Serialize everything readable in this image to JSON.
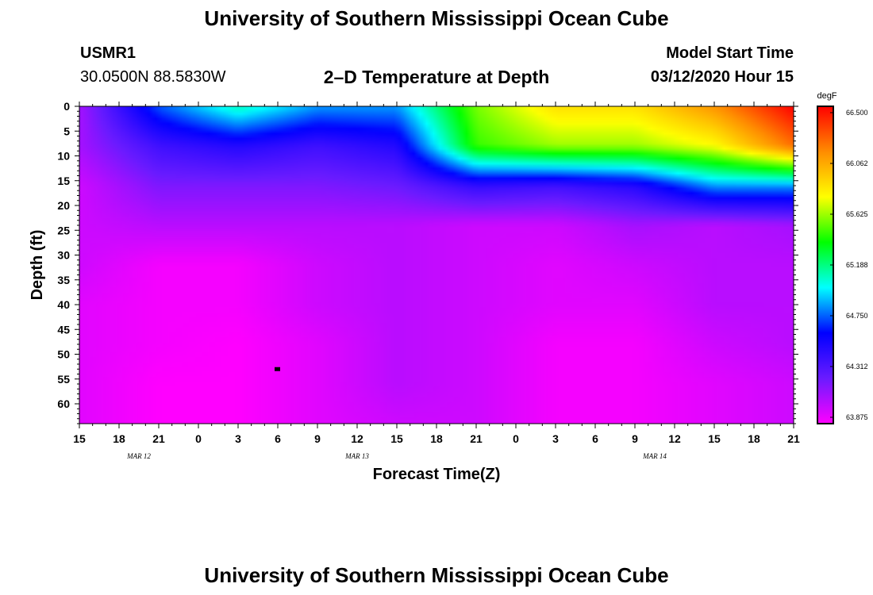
{
  "header": {
    "title_top": "University of Southern Mississippi Ocean Cube",
    "station": "USMR1",
    "coords": "30.0500N 88.5830W",
    "model_start_label": "Model Start Time",
    "model_start_value": "03/12/2020 Hour 15",
    "footer_title": "University of Southern Mississippi Ocean Cube"
  },
  "colors": {
    "scale": [
      "#ff00ff",
      "#6a1bff",
      "#0000ff",
      "#00ffff",
      "#00ff00",
      "#ffff00",
      "#ff8c00",
      "#ff0000"
    ]
  },
  "chart_data": {
    "type": "heatmap",
    "title": "2–D Temperature at Depth",
    "xlabel": "Forecast Time(Z)",
    "ylabel": "Depth (ft)",
    "x_tick_labels": [
      "15",
      "18",
      "21",
      "0",
      "3",
      "6",
      "9",
      "12",
      "15",
      "18",
      "21",
      "0",
      "3",
      "6",
      "9",
      "12",
      "15",
      "18",
      "21"
    ],
    "x_range_hours": [
      0,
      54
    ],
    "date_labels": [
      {
        "label": "MAR 12",
        "hour": 4.5
      },
      {
        "label": "MAR 13",
        "hour": 21
      },
      {
        "label": "MAR 14",
        "hour": 43.5
      }
    ],
    "y_tick_labels": [
      "0",
      "5",
      "10",
      "15",
      "20",
      "25",
      "30",
      "35",
      "40",
      "45",
      "50",
      "55",
      "60"
    ],
    "y_range_ft": [
      0,
      64
    ],
    "colorbar": {
      "unit": "degF",
      "min": 63.875,
      "max": 66.5,
      "tick_labels": [
        "66.500",
        "66.062",
        "65.625",
        "65.188",
        "64.750",
        "64.312",
        "63.875"
      ]
    },
    "marker": {
      "hour": 15,
      "depth_ft": 53
    },
    "grid_hours": [
      0,
      6,
      12,
      18,
      24,
      30,
      36,
      42,
      48,
      54
    ],
    "grid_depths_ft": [
      0,
      8,
      16,
      24,
      32,
      40,
      48,
      56,
      64
    ],
    "values_degF": [
      [
        64.1,
        64.75,
        65.1,
        64.85,
        64.85,
        65.55,
        65.85,
        65.85,
        66.1,
        66.5
      ],
      [
        64.1,
        64.4,
        64.5,
        64.4,
        64.5,
        65.45,
        65.6,
        65.6,
        65.75,
        66.2
      ],
      [
        64.0,
        64.2,
        64.2,
        64.2,
        64.25,
        64.45,
        64.4,
        64.5,
        64.85,
        64.85
      ],
      [
        64.0,
        64.05,
        64.05,
        64.05,
        64.05,
        64.0,
        64.0,
        64.1,
        64.05,
        64.1
      ],
      [
        64.0,
        63.9,
        63.9,
        64.0,
        64.05,
        64.0,
        63.95,
        64.0,
        64.05,
        64.05
      ],
      [
        63.95,
        63.9,
        63.9,
        64.0,
        64.05,
        64.0,
        63.95,
        63.95,
        64.05,
        64.05
      ],
      [
        63.95,
        63.9,
        63.875,
        63.95,
        64.05,
        64.0,
        63.9,
        63.9,
        64.0,
        64.05
      ],
      [
        63.95,
        63.875,
        63.875,
        63.95,
        64.05,
        64.0,
        63.9,
        63.9,
        63.95,
        64.0
      ],
      [
        63.95,
        63.875,
        63.875,
        63.95,
        64.0,
        64.0,
        63.9,
        63.9,
        63.95,
        64.0
      ]
    ]
  }
}
